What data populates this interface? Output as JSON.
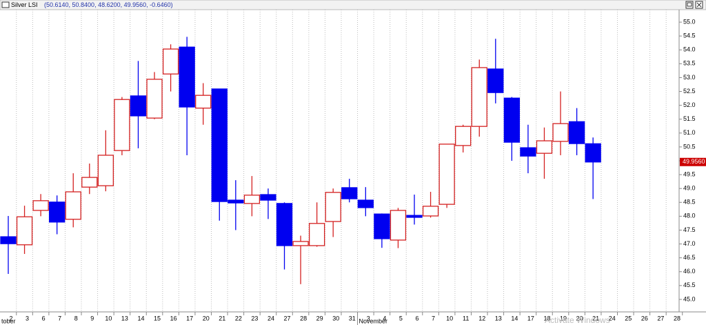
{
  "chart_data": {
    "type": "candlestick",
    "title": "Silver LSI",
    "title_values": "(50.6140, 50.8400, 48.6200, 49.9560, -0.6460)",
    "categories": [
      "2",
      "3",
      "6",
      "7",
      "8",
      "9",
      "10",
      "13",
      "14",
      "15",
      "16",
      "17",
      "20",
      "21",
      "22",
      "23",
      "24",
      "27",
      "28",
      "29",
      "30",
      "31",
      "3",
      "4",
      "5",
      "6",
      "7",
      "10",
      "11",
      "12",
      "13",
      "14",
      "17",
      "18",
      "19",
      "20",
      "21",
      "24",
      "25",
      "26",
      "27",
      "28"
    ],
    "month_labels": [
      "tober",
      "November"
    ],
    "open": [
      47.26,
      46.97,
      48.21,
      48.51,
      47.89,
      49.05,
      49.1,
      50.37,
      52.34,
      51.54,
      53.13,
      54.1,
      51.9,
      52.59,
      48.58,
      48.46,
      48.78,
      48.46,
      46.94,
      46.94,
      47.81,
      49.03,
      48.58,
      48.08,
      47.14,
      48.03,
      48.01,
      48.43,
      50.55,
      51.24,
      53.31,
      52.26,
      50.47,
      50.27,
      50.7,
      51.41,
      50.614,
      null,
      null,
      null,
      null,
      null
    ],
    "high": [
      48.01,
      48.38,
      48.8,
      48.75,
      49.55,
      49.9,
      51.1,
      52.3,
      53.6,
      53.2,
      54.2,
      54.47,
      52.8,
      52.6,
      49.3,
      49.45,
      49.0,
      48.5,
      47.3,
      48.5,
      49.0,
      49.35,
      49.05,
      48.1,
      48.3,
      48.78,
      48.88,
      50.6,
      51.3,
      53.65,
      54.4,
      52.3,
      51.3,
      51.2,
      52.5,
      51.9,
      50.84,
      null,
      null,
      null,
      null,
      null
    ],
    "low": [
      45.92,
      46.64,
      48.0,
      47.35,
      47.6,
      48.8,
      48.9,
      50.2,
      50.45,
      51.5,
      52.5,
      50.2,
      51.3,
      47.84,
      47.5,
      48.0,
      47.9,
      46.08,
      45.55,
      46.9,
      47.25,
      48.5,
      48.0,
      46.86,
      46.85,
      47.7,
      47.95,
      48.3,
      50.3,
      50.87,
      52.07,
      50.0,
      49.55,
      49.35,
      50.2,
      50.2,
      48.62,
      null,
      null,
      null,
      null,
      null
    ],
    "close": [
      47.01,
      47.98,
      48.56,
      47.79,
      48.88,
      49.4,
      50.2,
      52.21,
      51.62,
      52.94,
      54.03,
      51.94,
      52.36,
      48.53,
      48.48,
      48.76,
      48.58,
      46.94,
      47.09,
      47.74,
      48.86,
      48.63,
      48.31,
      47.19,
      48.21,
      47.96,
      48.36,
      50.6,
      51.24,
      53.36,
      52.46,
      50.67,
      50.17,
      50.72,
      51.34,
      50.62,
      49.956,
      null,
      null,
      null,
      null,
      null
    ],
    "last_price_label": "49.9560",
    "up_color": "#d42020",
    "down_color": "#0000f0",
    "ylim": [
      44.55,
      55.45
    ],
    "yticks": [
      {
        "value": 45,
        "label": "45.0"
      },
      {
        "value": 45.5,
        "label": "45.5"
      },
      {
        "value": 46,
        "label": "46.0"
      },
      {
        "value": 46.5,
        "label": "46.5"
      },
      {
        "value": 47,
        "label": "47.0"
      },
      {
        "value": 47.5,
        "label": "47.5"
      },
      {
        "value": 48,
        "label": "48.0"
      },
      {
        "value": 48.5,
        "label": "48.5"
      },
      {
        "value": 49,
        "label": "49.0"
      },
      {
        "value": 49.5,
        "label": "49.5"
      },
      {
        "value": 50,
        "label": "50.0"
      },
      {
        "value": 50.5,
        "label": "50.5"
      },
      {
        "value": 51,
        "label": "51.0"
      },
      {
        "value": 51.5,
        "label": "51.5"
      },
      {
        "value": 52,
        "label": "52.0"
      },
      {
        "value": 52.5,
        "label": "52.5"
      },
      {
        "value": 53,
        "label": "53.0"
      },
      {
        "value": 53.5,
        "label": "53.5"
      },
      {
        "value": 54,
        "label": "54.0"
      },
      {
        "value": 54.5,
        "label": "54.5"
      },
      {
        "value": 55,
        "label": "55.0"
      }
    ],
    "grid": true,
    "watermark": "Activate Windows"
  }
}
